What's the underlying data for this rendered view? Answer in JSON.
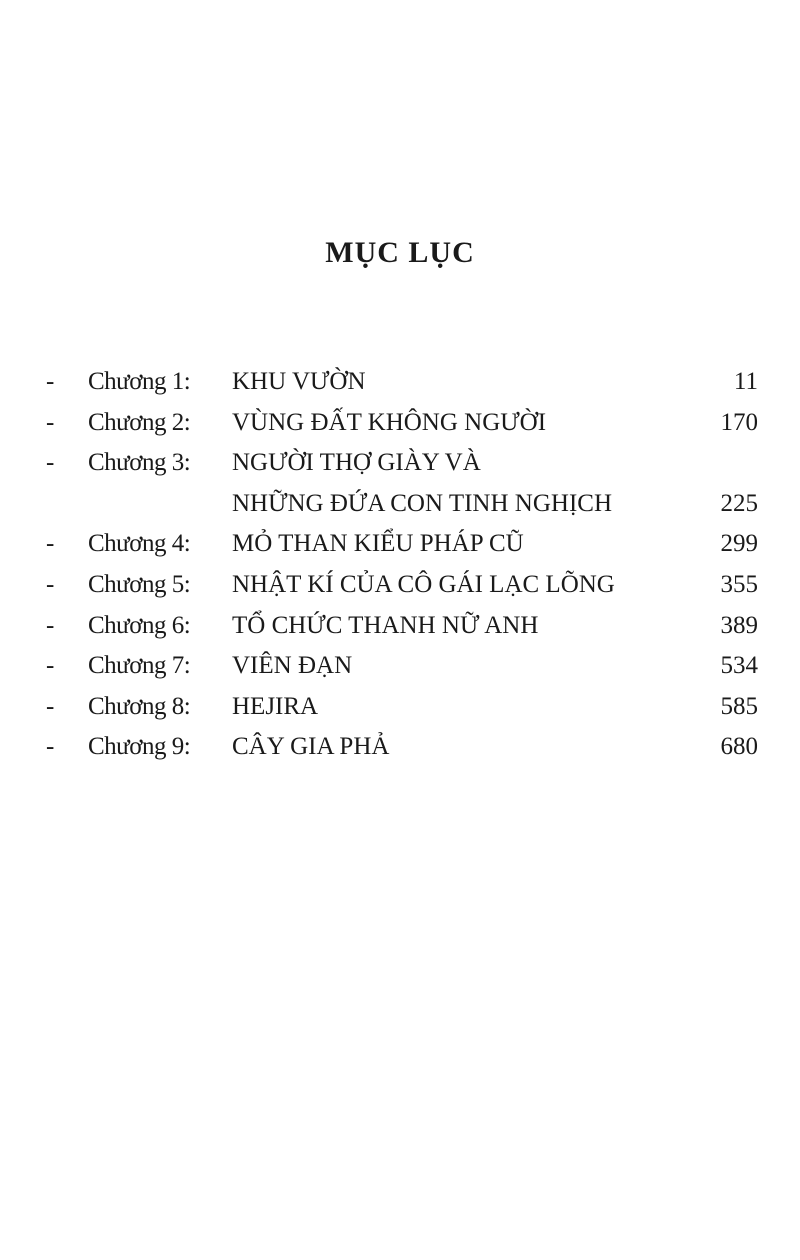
{
  "title": "MỤC LỤC",
  "entries": [
    {
      "dash": "-",
      "chapter": "Chương 1:",
      "lines": [
        "KHU VƯỜN"
      ],
      "page": "11"
    },
    {
      "dash": "-",
      "chapter": "Chương 2:",
      "lines": [
        "VÙNG ĐẤT KHÔNG NGƯỜI"
      ],
      "page": "170"
    },
    {
      "dash": "-",
      "chapter": "Chương 3:",
      "lines": [
        "NGƯỜI THỢ GIÀY  VÀ",
        "NHỮNG ĐỨA CON TINH NGHỊCH"
      ],
      "page": "225"
    },
    {
      "dash": "-",
      "chapter": "Chương 4:",
      "lines": [
        "MỎ THAN KIỂU PHÁP CŨ"
      ],
      "page": "299"
    },
    {
      "dash": "-",
      "chapter": "Chương 5:",
      "lines": [
        "NHẬT KÍ CỦA CÔ GÁI LẠC LÕNG"
      ],
      "page": "355"
    },
    {
      "dash": "-",
      "chapter": "Chương 6:",
      "lines": [
        "TỔ CHỨC THANH NỮ ANH"
      ],
      "page": "389"
    },
    {
      "dash": "-",
      "chapter": "Chương 7:",
      "lines": [
        "VIÊN ĐẠN"
      ],
      "page": "534"
    },
    {
      "dash": "-",
      "chapter": "Chương 8:",
      "lines": [
        "HEJIRA"
      ],
      "page": "585"
    },
    {
      "dash": "-",
      "chapter": "Chương 9:",
      "lines": [
        "CÂY GIA PHẢ"
      ],
      "page": "680"
    }
  ]
}
